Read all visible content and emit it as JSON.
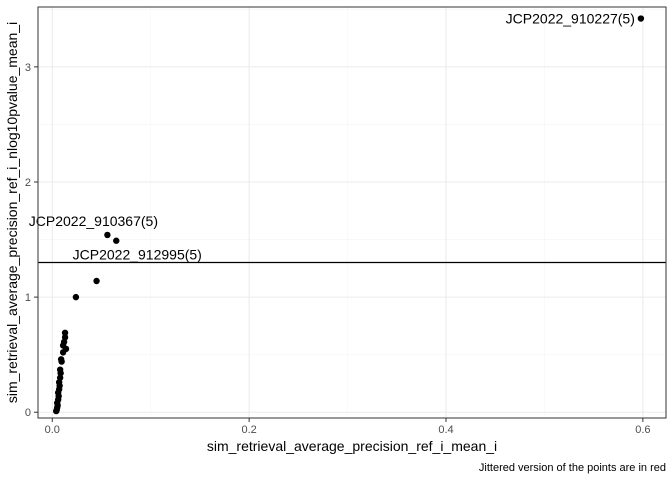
{
  "chart_data": {
    "type": "scatter",
    "title": "",
    "xlabel": "sim_retrieval_average_precision_ref_i_mean_i",
    "ylabel": "sim_retrieval_average_precision_ref_i_nlog10pvalue_mean_i",
    "caption": "Jittered version of the points are in red",
    "xlim": [
      -0.0145,
      0.6235
    ],
    "ylim": [
      -0.05,
      3.52
    ],
    "x_ticks": [
      0.0,
      0.2,
      0.4,
      0.6
    ],
    "x_tick_labels": [
      "0.0",
      "0.2",
      "0.4",
      "0.6"
    ],
    "y_ticks": [
      0,
      1,
      2,
      3
    ],
    "y_tick_labels": [
      "0",
      "1",
      "2",
      "3"
    ],
    "grid": true,
    "hline": {
      "y": 1.301
    },
    "points": [
      {
        "x": 0.598,
        "y": 3.42
      },
      {
        "x": 0.056,
        "y": 1.54
      },
      {
        "x": 0.065,
        "y": 1.49
      },
      {
        "x": 0.045,
        "y": 1.14
      },
      {
        "x": 0.024,
        "y": 1.0
      },
      {
        "x": 0.013,
        "y": 0.69
      },
      {
        "x": 0.013,
        "y": 0.65
      },
      {
        "x": 0.012,
        "y": 0.61
      },
      {
        "x": 0.011,
        "y": 0.58
      },
      {
        "x": 0.014,
        "y": 0.55
      },
      {
        "x": 0.011,
        "y": 0.52
      },
      {
        "x": 0.009,
        "y": 0.46
      },
      {
        "x": 0.0095,
        "y": 0.44
      },
      {
        "x": 0.008,
        "y": 0.37
      },
      {
        "x": 0.0085,
        "y": 0.34
      },
      {
        "x": 0.008,
        "y": 0.3
      },
      {
        "x": 0.007,
        "y": 0.26
      },
      {
        "x": 0.0075,
        "y": 0.23
      },
      {
        "x": 0.007,
        "y": 0.2
      },
      {
        "x": 0.006,
        "y": 0.17
      },
      {
        "x": 0.0065,
        "y": 0.14
      },
      {
        "x": 0.006,
        "y": 0.11
      },
      {
        "x": 0.005,
        "y": 0.08
      },
      {
        "x": 0.0055,
        "y": 0.06
      },
      {
        "x": 0.005,
        "y": 0.04
      },
      {
        "x": 0.0045,
        "y": 0.02
      },
      {
        "x": 0.004,
        "y": 0.01
      }
    ],
    "annotations": [
      {
        "text": "JCP2022_910227(5)",
        "x": 0.598,
        "y": 3.42,
        "anchor": "end"
      },
      {
        "text": "JCP2022_910367(5)",
        "x": 0.056,
        "y": 1.54,
        "anchor": "middle"
      },
      {
        "text": "JCP2022_912995(5)",
        "x": 0.065,
        "y": 1.3,
        "anchor": "middle"
      }
    ]
  }
}
